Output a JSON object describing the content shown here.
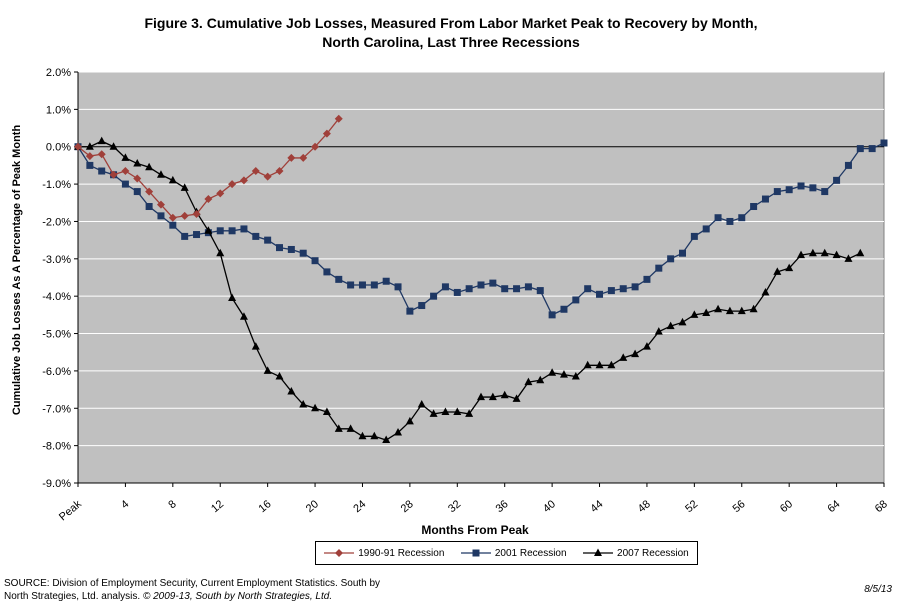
{
  "title_line1": "Figure 3. Cumulative Job Losses, Measured From Labor Market Peak to Recovery by Month,",
  "title_line2": "North Carolina, Last Three Recessions",
  "footer": {
    "source_line1": "SOURCE: Division of Employment Security, Current Employment Statistics. South by",
    "source_line2_plain": "North Strategies, Ltd. analysis. ",
    "source_line2_italic": "© 2009-13, South by North Strategies, Ltd.",
    "date": "8/5/13"
  },
  "chart_data": {
    "type": "line",
    "title": "Figure 3. Cumulative Job Losses, Measured From Labor Market Peak to Recovery by Month, North Carolina, Last Three Recessions",
    "xlabel": "Months From Peak",
    "ylabel": "Cumulative Job Losses As A Percentage of Peak Month",
    "xlim": [
      0,
      68
    ],
    "ylim": [
      -9.0,
      2.0
    ],
    "x_ticks": [
      {
        "value": 0,
        "label": "Peak"
      },
      {
        "value": 4,
        "label": "4"
      },
      {
        "value": 8,
        "label": "8"
      },
      {
        "value": 12,
        "label": "12"
      },
      {
        "value": 16,
        "label": "16"
      },
      {
        "value": 20,
        "label": "20"
      },
      {
        "value": 24,
        "label": "24"
      },
      {
        "value": 28,
        "label": "28"
      },
      {
        "value": 32,
        "label": "32"
      },
      {
        "value": 36,
        "label": "36"
      },
      {
        "value": 40,
        "label": "40"
      },
      {
        "value": 44,
        "label": "44"
      },
      {
        "value": 48,
        "label": "48"
      },
      {
        "value": 52,
        "label": "52"
      },
      {
        "value": 56,
        "label": "56"
      },
      {
        "value": 60,
        "label": "60"
      },
      {
        "value": 64,
        "label": "64"
      },
      {
        "value": 68,
        "label": "68"
      }
    ],
    "y_ticks": [
      {
        "value": 2,
        "label": "2.0%"
      },
      {
        "value": 1,
        "label": "1.0%"
      },
      {
        "value": 0,
        "label": "0.0%"
      },
      {
        "value": -1,
        "label": "-1.0%"
      },
      {
        "value": -2,
        "label": "-2.0%"
      },
      {
        "value": -3,
        "label": "-3.0%"
      },
      {
        "value": -4,
        "label": "-4.0%"
      },
      {
        "value": -5,
        "label": "-5.0%"
      },
      {
        "value": -6,
        "label": "-6.0%"
      },
      {
        "value": -7,
        "label": "-7.0%"
      },
      {
        "value": -8,
        "label": "-8.0%"
      },
      {
        "value": -9,
        "label": "-9.0%"
      }
    ],
    "grid": "horizontal",
    "plot_background": "#c0c0c0",
    "legend_position": "bottom",
    "series": [
      {
        "name": "1990-91 Recession",
        "color": "#a0403a",
        "marker": "diamond",
        "values": [
          0,
          -0.25,
          -0.2,
          -0.75,
          -0.65,
          -0.85,
          -1.2,
          -1.55,
          -1.9,
          -1.85,
          -1.8,
          -1.4,
          -1.25,
          -1.0,
          -0.9,
          -0.65,
          -0.8,
          -0.65,
          -0.3,
          -0.3,
          0.0,
          0.35,
          0.75
        ]
      },
      {
        "name": "2001 Recession",
        "color": "#1f3864",
        "marker": "square",
        "values": [
          0,
          -0.5,
          -0.65,
          -0.75,
          -1.0,
          -1.2,
          -1.6,
          -1.85,
          -2.1,
          -2.4,
          -2.35,
          -2.3,
          -2.25,
          -2.25,
          -2.2,
          -2.4,
          -2.5,
          -2.7,
          -2.75,
          -2.85,
          -3.05,
          -3.35,
          -3.55,
          -3.7,
          -3.7,
          -3.7,
          -3.6,
          -3.75,
          -4.4,
          -4.25,
          -4.0,
          -3.75,
          -3.9,
          -3.8,
          -3.7,
          -3.65,
          -3.8,
          -3.8,
          -3.75,
          -3.85,
          -4.5,
          -4.35,
          -4.1,
          -3.8,
          -3.95,
          -3.85,
          -3.8,
          -3.75,
          -3.55,
          -3.25,
          -3.0,
          -2.85,
          -2.4,
          -2.2,
          -1.9,
          -2.0,
          -1.9,
          -1.6,
          -1.4,
          -1.2,
          -1.15,
          -1.05,
          -1.1,
          -1.2,
          -0.9,
          -0.5,
          -0.05,
          -0.05,
          0.1
        ]
      },
      {
        "name": "2007 Recession",
        "color": "#000000",
        "marker": "triangle",
        "values": [
          0,
          0.0,
          0.15,
          0.0,
          -0.3,
          -0.45,
          -0.55,
          -0.75,
          -0.9,
          -1.1,
          -1.75,
          -2.25,
          -2.85,
          -4.05,
          -4.55,
          -5.35,
          -6.0,
          -6.15,
          -6.55,
          -6.9,
          -7.0,
          -7.1,
          -7.55,
          -7.55,
          -7.75,
          -7.75,
          -7.85,
          -7.65,
          -7.35,
          -6.9,
          -7.15,
          -7.1,
          -7.1,
          -7.15,
          -6.7,
          -6.7,
          -6.65,
          -6.75,
          -6.3,
          -6.25,
          -6.05,
          -6.1,
          -6.15,
          -5.85,
          -5.85,
          -5.85,
          -5.65,
          -5.55,
          -5.35,
          -4.95,
          -4.8,
          -4.7,
          -4.5,
          -4.45,
          -4.35,
          -4.4,
          -4.4,
          -4.35,
          -3.9,
          -3.35,
          -3.25,
          -2.9,
          -2.85,
          -2.85,
          -2.9,
          -3.0,
          -2.85
        ]
      }
    ]
  }
}
